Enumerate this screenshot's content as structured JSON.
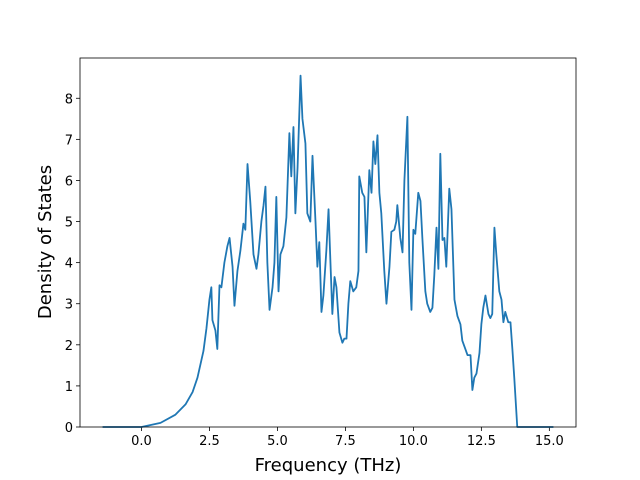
{
  "chart_data": {
    "type": "line",
    "xlabel": "Frequency (THz)",
    "ylabel": "Density of States",
    "xlim": [
      -2.26,
      15.98
    ],
    "ylim": [
      0,
      8.98
    ],
    "xticks": [
      {
        "value": 0,
        "label": "0.0"
      },
      2.5,
      {
        "value": 5,
        "label": "5.0"
      },
      7.5,
      {
        "value": 10,
        "label": "10.0"
      },
      12.5,
      {
        "value": 15,
        "label": "15.0"
      }
    ],
    "yticks": [
      0,
      1,
      2,
      3,
      4,
      5,
      6,
      7,
      8
    ],
    "grid": false,
    "series": [
      {
        "color": "#1f77b4",
        "x": [
          -1.43,
          0,
          0.7,
          1.25,
          1.62,
          1.88,
          2.06,
          2.28,
          2.39,
          2.5,
          2.57,
          2.61,
          2.72,
          2.79,
          2.87,
          2.94,
          3.05,
          3.16,
          3.24,
          3.35,
          3.42,
          3.53,
          3.64,
          3.75,
          3.82,
          3.9,
          4.0,
          4.12,
          4.23,
          4.3,
          4.41,
          4.49,
          4.56,
          4.63,
          4.71,
          4.82,
          4.89,
          4.96,
          5.04,
          5.11,
          5.22,
          5.33,
          5.44,
          5.51,
          5.59,
          5.66,
          5.74,
          5.85,
          5.92,
          6.03,
          6.1,
          6.21,
          6.29,
          6.4,
          6.47,
          6.54,
          6.62,
          6.69,
          6.8,
          6.88,
          6.95,
          7.02,
          7.1,
          7.17,
          7.28,
          7.39,
          7.46,
          7.54,
          7.61,
          7.68,
          7.79,
          7.9,
          7.98,
          8.01,
          8.12,
          8.2,
          8.27,
          8.38,
          8.46,
          8.53,
          8.6,
          8.68,
          8.75,
          8.82,
          8.93,
          9.01,
          9.12,
          9.19,
          9.3,
          9.37,
          9.41,
          9.52,
          9.6,
          9.67,
          9.78,
          9.85,
          9.93,
          10.0,
          10.07,
          10.18,
          10.26,
          10.33,
          10.44,
          10.51,
          10.62,
          10.7,
          10.77,
          10.85,
          10.92,
          10.99,
          11.07,
          11.14,
          11.21,
          11.32,
          11.4,
          11.51,
          11.62,
          11.73,
          11.8,
          11.91,
          11.99,
          12.1,
          12.17,
          12.24,
          12.32,
          12.43,
          12.5,
          12.57,
          12.65,
          12.76,
          12.83,
          12.9,
          12.98,
          13.05,
          13.16,
          13.24,
          13.31,
          13.38,
          13.49,
          13.57,
          13.64,
          13.71,
          13.82,
          15.15
        ],
        "values": [
          0,
          0,
          0.1,
          0.3,
          0.55,
          0.85,
          1.2,
          1.85,
          2.4,
          3.1,
          3.4,
          2.6,
          2.35,
          1.9,
          3.45,
          3.4,
          4.0,
          4.4,
          4.6,
          3.9,
          2.95,
          3.8,
          4.3,
          4.95,
          4.8,
          6.4,
          5.5,
          4.2,
          3.85,
          4.2,
          5.0,
          5.4,
          5.85,
          4.0,
          2.85,
          3.4,
          4.0,
          5.6,
          3.3,
          4.2,
          4.4,
          5.1,
          7.15,
          6.1,
          7.3,
          5.2,
          6.3,
          8.55,
          7.5,
          6.9,
          5.2,
          5.0,
          6.6,
          5.0,
          3.9,
          4.5,
          2.8,
          3.2,
          4.3,
          5.3,
          4.0,
          2.75,
          3.65,
          3.4,
          2.3,
          2.05,
          2.15,
          2.15,
          3.0,
          3.55,
          3.3,
          3.4,
          3.8,
          6.1,
          5.7,
          5.6,
          4.25,
          6.25,
          5.7,
          6.95,
          6.4,
          7.1,
          5.7,
          5.2,
          3.8,
          3.0,
          3.9,
          4.75,
          4.8,
          5.0,
          5.4,
          4.6,
          4.25,
          6.0,
          7.55,
          4.0,
          2.85,
          4.8,
          4.7,
          5.7,
          5.5,
          4.6,
          3.3,
          3.0,
          2.8,
          2.9,
          3.7,
          4.85,
          3.85,
          6.65,
          4.55,
          4.6,
          3.9,
          5.8,
          5.3,
          3.1,
          2.7,
          2.5,
          2.1,
          1.9,
          1.75,
          1.75,
          0.9,
          1.2,
          1.3,
          1.8,
          2.5,
          2.9,
          3.2,
          2.75,
          2.65,
          2.75,
          4.85,
          4.2,
          3.3,
          3.1,
          2.55,
          2.8,
          2.55,
          2.55,
          1.9,
          1.2,
          0,
          0
        ]
      }
    ]
  }
}
